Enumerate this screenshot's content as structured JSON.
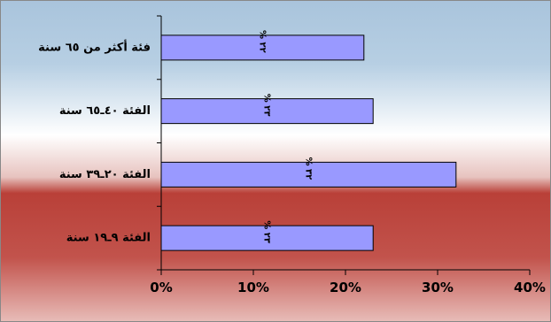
{
  "chart_data": {
    "type": "bar",
    "orientation": "horizontal",
    "categories": [
      "فئة أكثر من ٦٥ سنة",
      "الفئة ٤٠ـ٦٥ سنة",
      "الفئة ٢٠ـ٣٩ سنة",
      "الفئة ٩ـ١٩ سنة"
    ],
    "values": [
      22,
      23,
      32,
      23
    ],
    "data_labels": [
      "٢٢ %",
      "٢٣ %",
      "٣٢ %",
      "٢٣ %"
    ],
    "xlim": [
      0,
      40
    ],
    "x_ticks": [
      0,
      10,
      20,
      30,
      40
    ],
    "x_tick_labels": [
      "0%",
      "10%",
      "20%",
      "30%",
      "40%"
    ],
    "title": "",
    "xlabel": "",
    "ylabel": "",
    "legend": "none",
    "grid": false,
    "colors": {
      "bar_fill": "#9999ff",
      "bar_stroke": "#000000",
      "background_top": "#a9c4dc",
      "background_mid": "#ffffff",
      "background_bottom": "#b94038"
    }
  }
}
